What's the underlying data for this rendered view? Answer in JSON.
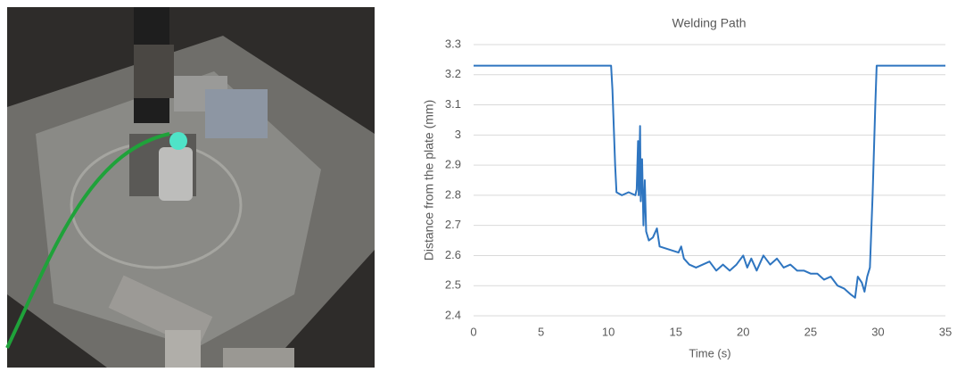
{
  "chart_data": {
    "type": "line",
    "title": "Welding Path",
    "x_label": "Time (s)",
    "y_label": "Distance from the plate (mm)",
    "xlim": [
      0,
      35
    ],
    "xticks": [
      0,
      5,
      10,
      15,
      20,
      25,
      30,
      35
    ],
    "ylim": [
      2.4,
      3.3
    ],
    "yticks": [
      2.4,
      2.5,
      2.6,
      2.7,
      2.8,
      2.9,
      3,
      3.1,
      3.2,
      3.3
    ],
    "grid": true,
    "series": [
      {
        "name": "Welding Path",
        "color": "#2e75c0",
        "x": [
          0,
          10.2,
          10.3,
          10.5,
          10.6,
          11,
          11.5,
          12,
          12.1,
          12.2,
          12.25,
          12.35,
          12.4,
          12.5,
          12.6,
          12.7,
          12.8,
          13,
          13.3,
          13.6,
          13.8,
          14.5,
          15.2,
          15.4,
          15.6,
          16,
          16.5,
          17,
          17.5,
          18,
          18.5,
          19,
          19.5,
          20,
          20.3,
          20.6,
          21,
          21.5,
          22,
          22.5,
          23,
          23.5,
          24,
          24.5,
          25,
          25.5,
          26,
          26.5,
          27,
          27.5,
          28,
          28.3,
          28.5,
          28.8,
          29,
          29.2,
          29.4,
          29.6,
          29.8,
          29.9,
          35
        ],
        "values": [
          3.23,
          3.23,
          3.15,
          2.9,
          2.81,
          2.8,
          2.81,
          2.8,
          2.82,
          2.98,
          2.8,
          3.03,
          2.78,
          2.92,
          2.7,
          2.85,
          2.68,
          2.65,
          2.66,
          2.69,
          2.63,
          2.62,
          2.61,
          2.63,
          2.59,
          2.57,
          2.56,
          2.57,
          2.58,
          2.55,
          2.57,
          2.55,
          2.57,
          2.6,
          2.56,
          2.59,
          2.55,
          2.6,
          2.57,
          2.59,
          2.56,
          2.57,
          2.55,
          2.55,
          2.54,
          2.54,
          2.52,
          2.53,
          2.5,
          2.49,
          2.47,
          2.46,
          2.53,
          2.51,
          2.48,
          2.53,
          2.56,
          2.8,
          3.1,
          3.23,
          3.23
        ]
      }
    ]
  }
}
